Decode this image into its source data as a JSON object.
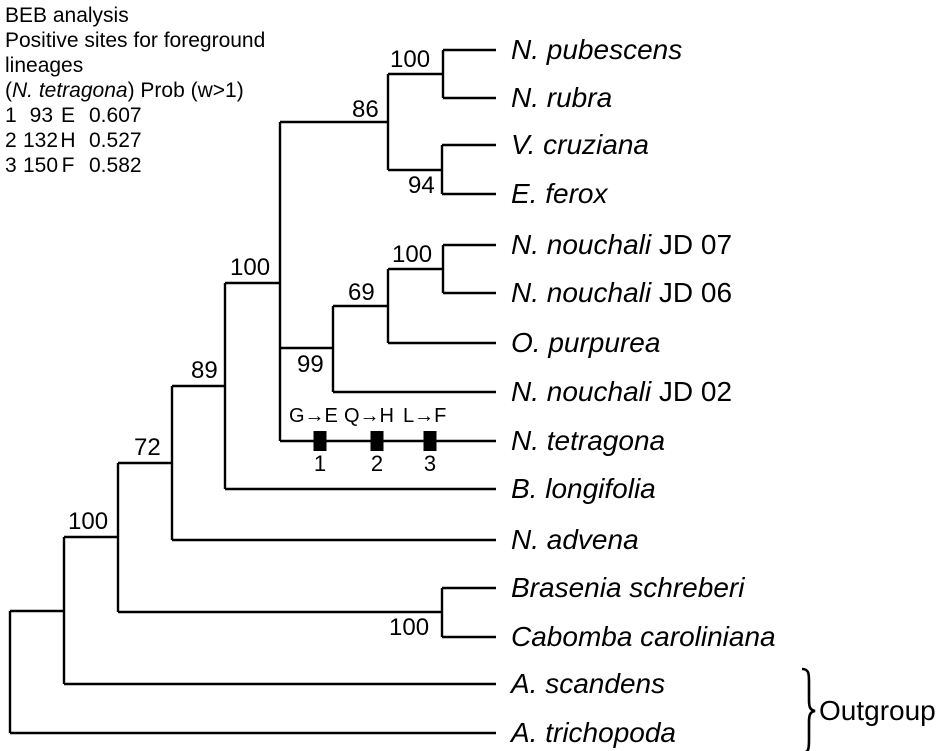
{
  "legend": {
    "title": "BEB analysis",
    "subtitle_line1": "Positive sites for foreground",
    "subtitle_line2": "lineages",
    "header_pre": "(",
    "header_species": "N. tetragona",
    "header_post": ") Prob (w>1)",
    "rows": [
      {
        "site": "1",
        "position": "93",
        "amino_acid": "E",
        "probability": "0.607"
      },
      {
        "site": "2",
        "position": "132",
        "amino_acid": "H",
        "probability": "0.527"
      },
      {
        "site": "3",
        "position": "150",
        "amino_acid": "F",
        "probability": "0.582"
      }
    ]
  },
  "tree": {
    "leaves": [
      {
        "italic": "N. pubescens",
        "plain": ""
      },
      {
        "italic": "N. rubra",
        "plain": ""
      },
      {
        "italic": "V. cruziana",
        "plain": ""
      },
      {
        "italic": "E. ferox",
        "plain": ""
      },
      {
        "italic": "N. nouchali",
        "plain": " JD 07"
      },
      {
        "italic": "N. nouchali",
        "plain": " JD 06"
      },
      {
        "italic": "O. purpurea",
        "plain": ""
      },
      {
        "italic": "N. nouchali",
        "plain": " JD 02"
      },
      {
        "italic": "N. tetragona",
        "plain": ""
      },
      {
        "italic": "B. longifolia",
        "plain": ""
      },
      {
        "italic": "N. advena",
        "plain": ""
      },
      {
        "italic": "Brasenia schreberi",
        "plain": ""
      },
      {
        "italic": "Cabomba caroliniana",
        "plain": ""
      },
      {
        "italic": "A. scandens",
        "plain": ""
      },
      {
        "italic": "A. trichopoda",
        "plain": ""
      }
    ],
    "supports": [
      "100",
      "86",
      "94",
      "100",
      "69",
      "99",
      "100",
      "89",
      "72",
      "100",
      "100"
    ],
    "geometry": {
      "horizontal_branches": [
        [
          10,
          611,
          64
        ],
        [
          10,
          733,
          496
        ],
        [
          64,
          537,
          118
        ],
        [
          64,
          684,
          496
        ],
        [
          118,
          463,
          172
        ],
        [
          118,
          612,
          442
        ],
        [
          172,
          386,
          225
        ],
        [
          172,
          540,
          496
        ],
        [
          225,
          283,
          280
        ],
        [
          225,
          489,
          496
        ],
        [
          280,
          122,
          388
        ],
        [
          280,
          348,
          333
        ],
        [
          280,
          441,
          496
        ],
        [
          388,
          74,
          443
        ],
        [
          388,
          170,
          442
        ],
        [
          443,
          50,
          496
        ],
        [
          443,
          98,
          496
        ],
        [
          442,
          145,
          496
        ],
        [
          442,
          194,
          496
        ],
        [
          333,
          306,
          388
        ],
        [
          333,
          392,
          496
        ],
        [
          388,
          269,
          443
        ],
        [
          388,
          343,
          496
        ],
        [
          443,
          245,
          496
        ],
        [
          443,
          293,
          496
        ],
        [
          442,
          588,
          496
        ],
        [
          442,
          637,
          496
        ]
      ],
      "vertical_branches": [
        [
          10,
          611,
          733
        ],
        [
          64,
          537,
          684
        ],
        [
          118,
          463,
          612
        ],
        [
          172,
          386,
          540
        ],
        [
          225,
          283,
          489
        ],
        [
          280,
          122,
          441
        ],
        [
          388,
          74,
          170
        ],
        [
          443,
          50,
          98
        ],
        [
          442,
          145,
          194
        ],
        [
          333,
          306,
          392
        ],
        [
          388,
          269,
          343
        ],
        [
          443,
          245,
          293
        ],
        [
          442,
          588,
          637
        ]
      ],
      "site_markers": [
        [
          320,
          441
        ],
        [
          377,
          441
        ],
        [
          430,
          441
        ]
      ]
    }
  },
  "annotations": {
    "mutations": [
      {
        "change": "G→E",
        "site": "1"
      },
      {
        "change": "Q→H",
        "site": "2"
      },
      {
        "change": "L→F",
        "site": "3"
      }
    ],
    "outgroup": "Outgroup"
  }
}
